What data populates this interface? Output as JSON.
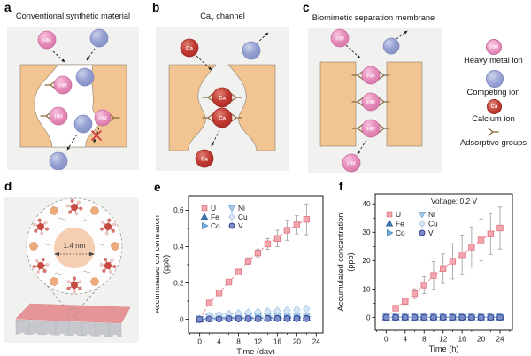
{
  "panels": {
    "a": {
      "letter": "a",
      "title": "Conventional synthetic material",
      "ion_label": "HM"
    },
    "b": {
      "letter": "b",
      "title_prefix": "Ca",
      "title_subscript": "v",
      "title_suffix": " channel",
      "ion_label": "Ca"
    },
    "c": {
      "letter": "c",
      "title": "Biomimetic separation membrane",
      "ion_label": "HM"
    },
    "d": {
      "letter": "d",
      "pore_size_label": "1.4 nm"
    },
    "e": {
      "letter": "e"
    },
    "f": {
      "letter": "f"
    }
  },
  "side_legend": {
    "items": [
      {
        "name": "heavy-metal-ion",
        "badge": "HM",
        "label": "Heavy metal ion"
      },
      {
        "name": "competing-ion",
        "badge": "",
        "label": "Competing ion"
      },
      {
        "name": "calcium-ion",
        "badge": "Ca",
        "label": "Calcium ion"
      },
      {
        "name": "adsorptive-groups",
        "badge": "",
        "label": "Adsorptive groups"
      }
    ]
  },
  "colors": {
    "panel_background": "#f1f1ef",
    "membrane_orange": "#f1c492",
    "membrane_outline": "#8d7f6c",
    "heavy_metal_pink": "#e78ebc",
    "competing_blue": "#95a0d2",
    "calcium_red": "#c23a31",
    "adsorptive_brown": "#8a6a3c",
    "blocked_x_red": "#cf3a40",
    "error_bar_gray": "#9a9a9a"
  },
  "chart_data": [
    {
      "id": "e",
      "type": "scatter",
      "xlabel": "Time (day)",
      "ylabel_lines": [
        "Accumulated concentration",
        "(ppb)"
      ],
      "xlim": [
        -2.3,
        25.4
      ],
      "ylim": [
        -0.075,
        0.68
      ],
      "xticks": [
        0,
        4,
        8,
        12,
        16,
        20,
        24
      ],
      "yticks": [
        0,
        0.2,
        0.4,
        0.6
      ],
      "grid": false,
      "legend_position": "upper-left",
      "x": [
        0,
        2,
        4,
        6,
        8,
        10,
        12,
        14,
        16,
        18,
        20,
        22
      ],
      "series": [
        {
          "name": "U",
          "marker": "square",
          "fill": "#f3a6ae",
          "edge": "#e07b87",
          "line": "#e8818e",
          "values": [
            0,
            0.09,
            0.145,
            0.205,
            0.26,
            0.32,
            0.365,
            0.415,
            0.445,
            0.49,
            0.52,
            0.55
          ],
          "errors": [
            0.005,
            0.008,
            0.01,
            0.012,
            0.015,
            0.018,
            0.022,
            0.03,
            0.045,
            0.055,
            0.05,
            0.085
          ]
        },
        {
          "name": "Fe",
          "marker": "triangle-up",
          "fill": "#3e7cb9",
          "edge": "#2e5f98",
          "values": [
            0,
            0.004,
            0.005,
            0.005,
            0.006,
            0.006,
            0.006,
            0.007,
            0.007,
            0.007,
            0.008,
            0.008
          ],
          "errors": 0.008
        },
        {
          "name": "Co",
          "marker": "triangle-right",
          "fill": "#79b0de",
          "edge": "#5590c4",
          "values": [
            0,
            0.008,
            0.009,
            0.01,
            0.011,
            0.011,
            0.012,
            0.012,
            0.013,
            0.013,
            0.014,
            0.014
          ],
          "errors": 0.008
        },
        {
          "name": "Ni",
          "marker": "triangle-down",
          "fill": "#a6cbe9",
          "edge": "#7fb0d9",
          "values": [
            0,
            0.012,
            0.014,
            0.016,
            0.017,
            0.018,
            0.018,
            0.019,
            0.019,
            0.02,
            0.02,
            0.021
          ],
          "errors": 0.01
        },
        {
          "name": "Cu",
          "marker": "diamond",
          "fill": "#d6e6f5",
          "edge": "#aecbe5",
          "values": [
            0,
            0.018,
            0.024,
            0.029,
            0.033,
            0.037,
            0.04,
            0.043,
            0.046,
            0.049,
            0.053,
            0.058
          ],
          "errors": 0.012
        },
        {
          "name": "V",
          "marker": "circle",
          "fill": "#7c8cc9",
          "edge": "#2e3f8f",
          "values": [
            0,
            0.002,
            0.002,
            0.003,
            0.003,
            0.003,
            0.003,
            0.004,
            0.004,
            0.004,
            0.004,
            0.004
          ],
          "errors": 0.006
        }
      ]
    },
    {
      "id": "f",
      "type": "scatter",
      "annotation": "Voltage: 0.2 V",
      "xlabel": "Time (h)",
      "ylabel_lines": [
        "Accumulated concentration",
        "(ppb)"
      ],
      "xlim": [
        -2.3,
        26.6
      ],
      "ylim": [
        -4.5,
        43.5
      ],
      "xticks": [
        0,
        4,
        8,
        12,
        16,
        20,
        24
      ],
      "yticks": [
        0,
        10,
        20,
        30,
        40
      ],
      "grid": false,
      "legend_position": "upper-left",
      "x": [
        0,
        2,
        4,
        6,
        8,
        10,
        12,
        14,
        16,
        18,
        20,
        22,
        24
      ],
      "series": [
        {
          "name": "U",
          "marker": "square",
          "fill": "#f3a6ae",
          "edge": "#e07b87",
          "line": "#e8818e",
          "values": [
            0,
            3.3,
            5.7,
            8.4,
            11.4,
            14.8,
            17.2,
            19.8,
            22.1,
            24.8,
            27.3,
            29.4,
            31.5
          ],
          "errors": [
            0.3,
            0.7,
            1.1,
            1.7,
            3,
            4.9,
            5.2,
            6.2,
            6.9,
            7.1,
            7.4,
            7.2,
            7.4
          ]
        },
        {
          "name": "Fe",
          "marker": "triangle-up",
          "fill": "#3e7cb9",
          "edge": "#2e5f98",
          "values_const": 0.1,
          "errors": 0.5
        },
        {
          "name": "Co",
          "marker": "triangle-right",
          "fill": "#79b0de",
          "edge": "#5590c4",
          "values_const": 0.15,
          "errors": 0.5
        },
        {
          "name": "Ni",
          "marker": "triangle-down",
          "fill": "#a6cbe9",
          "edge": "#7fb0d9",
          "values_const": 0.2,
          "errors": 0.5
        },
        {
          "name": "Cu",
          "marker": "diamond",
          "fill": "#d6e6f5",
          "edge": "#aecbe5",
          "values_const": 0.3,
          "errors": 0.5
        },
        {
          "name": "V",
          "marker": "circle",
          "fill": "#7c8cc9",
          "edge": "#2e3f8f",
          "values_const": 0.05,
          "errors": 0.6
        }
      ]
    }
  ]
}
